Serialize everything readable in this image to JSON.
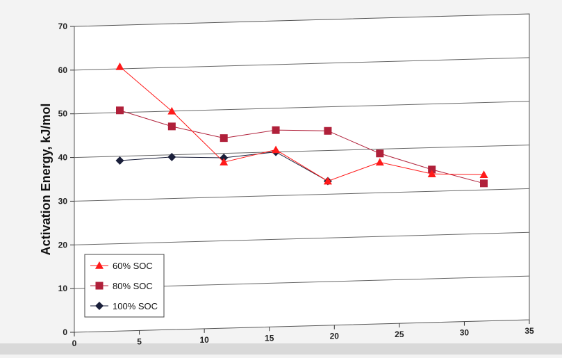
{
  "chart_data": {
    "type": "line",
    "title": "",
    "xlabel": "",
    "ylabel": "Activation Energy, kJ/mol",
    "xlim": [
      0,
      35
    ],
    "ylim": [
      0,
      70
    ],
    "xticks": [
      0,
      5,
      10,
      15,
      20,
      25,
      30,
      35
    ],
    "yticks": [
      0,
      10,
      20,
      30,
      40,
      50,
      60,
      70
    ],
    "grid": "horizontal",
    "legend_position": "bottom-left",
    "series": [
      {
        "name": "60% SOC",
        "color": "#ff1a1a",
        "marker": "triangle",
        "x": [
          3.5,
          7.5,
          11.5,
          15.5,
          19.5,
          23.5,
          27.5,
          31.5
        ],
        "y": [
          60.5,
          50.0,
          38.0,
          40.5,
          33.0,
          37.0,
          34.0,
          33.5
        ]
      },
      {
        "name": "80% SOC",
        "color": "#b0203a",
        "marker": "square",
        "x": [
          3.5,
          7.5,
          11.5,
          15.5,
          19.5,
          23.5,
          27.5,
          31.5
        ],
        "y": [
          50.5,
          46.5,
          43.5,
          45.0,
          44.5,
          39.0,
          35.0,
          31.5
        ]
      },
      {
        "name": "100% SOC",
        "color": "#1a1f3a",
        "marker": "diamond",
        "x": [
          3.5,
          7.5,
          11.5,
          15.5,
          19.5
        ],
        "y": [
          39.0,
          39.5,
          39.0,
          40.0,
          33.0
        ]
      }
    ]
  }
}
